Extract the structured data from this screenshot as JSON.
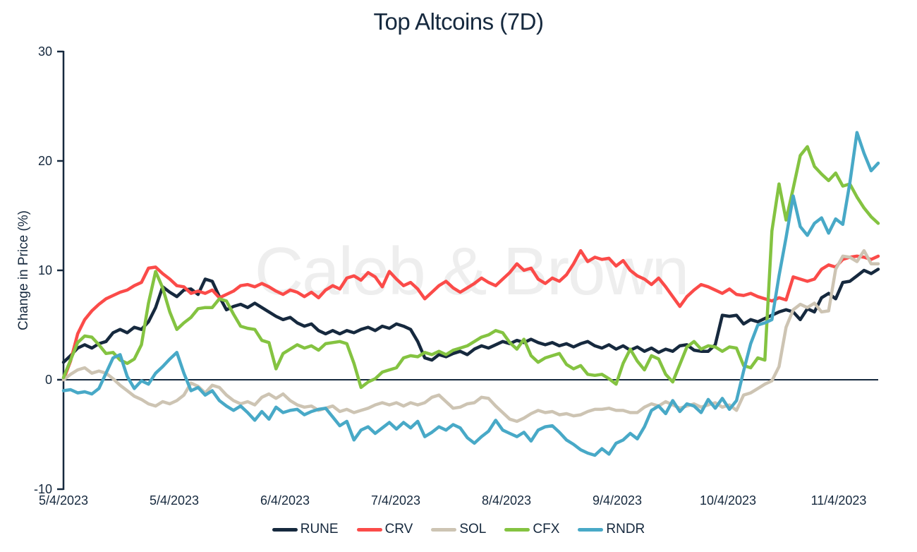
{
  "title": {
    "text": "Top Altcoins (7D)"
  },
  "watermark": {
    "text": "Caleb & Brown"
  },
  "y_axis": {
    "label": "Change in Price (%)",
    "ticks": [
      30,
      20,
      10,
      0,
      -10
    ]
  },
  "x_axis": {
    "ticks": [
      "5/4/2023",
      "5/4/2023",
      "6/4/2023",
      "7/4/2023",
      "8/4/2023",
      "9/4/2023",
      "10/4/2023",
      "11/4/2023"
    ]
  },
  "legend": {
    "items": [
      {
        "label": "RUNE",
        "color": "#16293E"
      },
      {
        "label": "CRV",
        "color": "#FB4B49"
      },
      {
        "label": "SOL",
        "color": "#CDC4B3"
      },
      {
        "label": "CFX",
        "color": "#84C341"
      },
      {
        "label": "RNDR",
        "color": "#48A9C7"
      }
    ]
  },
  "colors": {
    "text": "#16293E",
    "axis": "#16293E",
    "watermark": "#EEEEEE",
    "background": "#FFFFFF"
  },
  "chart_data": {
    "type": "line",
    "title": "Top Altcoins (7D)",
    "xlabel": "",
    "ylabel": "Change in Price (%)",
    "ylim": [
      -10,
      30
    ],
    "grid": false,
    "legend_position": "bottom",
    "x_tick_labels": [
      "5/4/2023",
      "5/4/2023",
      "6/4/2023",
      "7/4/2023",
      "8/4/2023",
      "9/4/2023",
      "10/4/2023",
      "11/4/2023"
    ],
    "series": [
      {
        "name": "RUNE",
        "color": "#16293E",
        "values": [
          1.6,
          2.2,
          2.9,
          3.2,
          2.9,
          3.3,
          3.5,
          4.3,
          4.6,
          4.3,
          4.8,
          4.6,
          5.3,
          6.6,
          8.5,
          8.0,
          7.6,
          8.2,
          8.3,
          7.8,
          9.2,
          9.0,
          7.6,
          6.4,
          6.7,
          6.9,
          6.6,
          7.0,
          6.6,
          6.2,
          5.8,
          5.5,
          5.7,
          5.2,
          4.9,
          5.1,
          4.5,
          4.2,
          4.5,
          4.2,
          4.5,
          4.3,
          4.6,
          4.8,
          4.5,
          4.9,
          4.7,
          5.1,
          4.9,
          4.6,
          3.5,
          2.0,
          1.8,
          2.3,
          2.1,
          2.4,
          2.6,
          2.3,
          2.8,
          3.1,
          2.9,
          3.2,
          3.5,
          3.3,
          3.6,
          3.4,
          3.7,
          3.4,
          3.2,
          3.4,
          3.1,
          3.3,
          3.0,
          3.3,
          3.5,
          3.1,
          2.9,
          3.2,
          2.8,
          3.1,
          2.7,
          3.0,
          2.6,
          2.9,
          2.5,
          2.8,
          2.6,
          3.1,
          3.2,
          2.7,
          2.6,
          2.6,
          3.2,
          5.9,
          5.8,
          5.9,
          5.1,
          5.5,
          5.3,
          5.6,
          5.9,
          6.2,
          6.4,
          6.2,
          5.5,
          6.5,
          6.2,
          7.5,
          7.9,
          7.4,
          8.9,
          9.0,
          9.5,
          10.0,
          9.7,
          10.1
        ]
      },
      {
        "name": "CRV",
        "color": "#FB4B49",
        "values": [
          0.0,
          1.7,
          4.2,
          5.5,
          6.3,
          6.9,
          7.4,
          7.7,
          8.0,
          8.2,
          8.6,
          8.9,
          10.2,
          10.3,
          9.7,
          9.2,
          8.6,
          8.5,
          7.9,
          8.1,
          7.9,
          8.2,
          7.5,
          7.8,
          8.1,
          8.6,
          8.7,
          8.5,
          8.8,
          8.5,
          8.1,
          7.8,
          8.2,
          8.0,
          7.6,
          8.0,
          7.5,
          8.2,
          8.6,
          8.3,
          9.3,
          9.5,
          9.1,
          9.8,
          9.4,
          8.5,
          9.9,
          9.2,
          8.6,
          8.9,
          8.3,
          7.4,
          8.0,
          8.6,
          9.0,
          8.4,
          8.0,
          8.4,
          8.8,
          9.3,
          8.9,
          8.6,
          9.2,
          9.8,
          10.6,
          10.0,
          10.2,
          9.2,
          8.8,
          9.3,
          9.0,
          9.6,
          10.6,
          11.8,
          10.8,
          11.2,
          11.0,
          11.1,
          10.4,
          10.9,
          10.0,
          9.5,
          9.2,
          8.7,
          9.3,
          8.5,
          7.6,
          6.7,
          7.6,
          8.2,
          8.7,
          8.5,
          8.2,
          7.9,
          8.3,
          7.8,
          7.7,
          7.9,
          7.6,
          7.4,
          7.2,
          7.5,
          7.3,
          9.4,
          9.2,
          9.0,
          9.2,
          10.1,
          10.5,
          10.3,
          11.0,
          11.2,
          11.3,
          11.2,
          11.0,
          11.3
        ]
      },
      {
        "name": "SOL",
        "color": "#CDC4B3",
        "values": [
          0.0,
          0.5,
          0.9,
          1.1,
          0.6,
          0.8,
          0.6,
          0.1,
          -0.5,
          -1.0,
          -1.5,
          -1.8,
          -2.2,
          -2.4,
          -2.0,
          -2.2,
          -1.9,
          -1.4,
          -0.3,
          -0.6,
          -1.2,
          -0.5,
          -0.7,
          -1.4,
          -1.9,
          -2.2,
          -2.0,
          -2.3,
          -1.6,
          -1.3,
          -1.7,
          -1.3,
          -1.9,
          -2.3,
          -2.5,
          -2.4,
          -2.8,
          -2.6,
          -2.4,
          -2.9,
          -2.7,
          -3.0,
          -2.8,
          -2.6,
          -2.3,
          -2.1,
          -2.3,
          -2.1,
          -2.4,
          -2.1,
          -2.3,
          -2.1,
          -1.6,
          -1.4,
          -2.0,
          -2.6,
          -2.5,
          -2.2,
          -2.1,
          -1.6,
          -1.7,
          -2.4,
          -3.0,
          -3.6,
          -3.8,
          -3.5,
          -3.1,
          -2.8,
          -3.0,
          -2.9,
          -3.2,
          -3.1,
          -3.3,
          -3.2,
          -2.9,
          -2.7,
          -2.7,
          -2.6,
          -2.8,
          -2.8,
          -3.0,
          -3.0,
          -2.5,
          -2.2,
          -2.4,
          -2.0,
          -2.3,
          -2.6,
          -2.4,
          -2.2,
          -2.5,
          -2.3,
          -2.1,
          -2.5,
          -2.3,
          -2.8,
          -1.4,
          -1.2,
          -0.8,
          -0.4,
          -0.1,
          1.2,
          4.8,
          6.4,
          6.9,
          6.6,
          7.0,
          6.2,
          6.3,
          10.1,
          11.3,
          11.2,
          10.8,
          11.8,
          10.6,
          10.6
        ]
      },
      {
        "name": "CFX",
        "color": "#84C341",
        "values": [
          0.2,
          1.8,
          3.4,
          4.0,
          3.9,
          3.2,
          2.4,
          2.5,
          1.8,
          1.5,
          1.9,
          3.2,
          7.0,
          9.9,
          8.4,
          6.2,
          4.6,
          5.2,
          5.7,
          6.5,
          6.6,
          6.6,
          7.4,
          7.2,
          6.0,
          4.9,
          4.7,
          4.6,
          3.6,
          3.4,
          1.0,
          2.4,
          2.8,
          3.2,
          2.9,
          3.1,
          2.7,
          3.3,
          3.4,
          3.5,
          3.3,
          1.5,
          -0.7,
          -0.2,
          0.1,
          0.7,
          0.9,
          1.1,
          2.0,
          2.2,
          2.1,
          2.5,
          2.3,
          2.6,
          2.3,
          2.7,
          2.9,
          3.1,
          3.5,
          3.9,
          4.1,
          4.5,
          4.3,
          3.4,
          2.8,
          3.7,
          2.2,
          1.6,
          2.0,
          2.2,
          2.4,
          1.4,
          1.0,
          1.3,
          0.5,
          0.4,
          0.5,
          0.1,
          -0.4,
          1.5,
          2.8,
          1.7,
          0.9,
          2.2,
          1.9,
          0.5,
          -0.2,
          1.4,
          3.0,
          3.5,
          2.8,
          3.1,
          3.0,
          2.6,
          3.0,
          2.9,
          1.3,
          1.1,
          2.0,
          1.8,
          13.6,
          17.9,
          14.6,
          17.5,
          20.5,
          21.3,
          19.5,
          18.8,
          18.2,
          18.9,
          17.7,
          17.9,
          16.7,
          15.7,
          14.9,
          14.3
        ]
      },
      {
        "name": "RNDR",
        "color": "#48A9C7",
        "values": [
          -1.0,
          -0.9,
          -1.2,
          -1.1,
          -1.3,
          -0.8,
          0.6,
          2.0,
          2.3,
          0.3,
          -0.8,
          -0.1,
          -0.4,
          0.6,
          1.2,
          1.9,
          2.5,
          0.6,
          -1.0,
          -0.7,
          -1.4,
          -1.0,
          -1.9,
          -2.4,
          -2.8,
          -2.4,
          -3.0,
          -3.7,
          -2.9,
          -3.6,
          -2.5,
          -3.0,
          -2.8,
          -2.7,
          -3.2,
          -2.9,
          -2.7,
          -2.6,
          -3.4,
          -4.2,
          -3.8,
          -5.5,
          -4.6,
          -4.3,
          -4.9,
          -4.4,
          -3.9,
          -4.5,
          -3.9,
          -4.4,
          -3.8,
          -5.2,
          -4.8,
          -4.3,
          -4.6,
          -4.1,
          -4.4,
          -5.3,
          -5.8,
          -5.2,
          -4.7,
          -3.7,
          -4.6,
          -4.9,
          -5.2,
          -4.8,
          -5.6,
          -4.6,
          -4.3,
          -4.2,
          -4.8,
          -5.5,
          -5.9,
          -6.4,
          -6.7,
          -6.9,
          -6.3,
          -6.8,
          -5.8,
          -5.5,
          -4.9,
          -5.4,
          -4.3,
          -2.8,
          -2.4,
          -3.1,
          -1.9,
          -2.9,
          -2.2,
          -2.4,
          -3.0,
          -1.8,
          -2.6,
          -1.7,
          -2.7,
          -1.9,
          0.8,
          3.3,
          5.0,
          5.2,
          5.5,
          9.5,
          13.0,
          16.8,
          14.0,
          13.2,
          14.3,
          14.8,
          13.4,
          14.7,
          14.2,
          18.0,
          22.6,
          20.7,
          19.1,
          19.8
        ]
      }
    ]
  }
}
